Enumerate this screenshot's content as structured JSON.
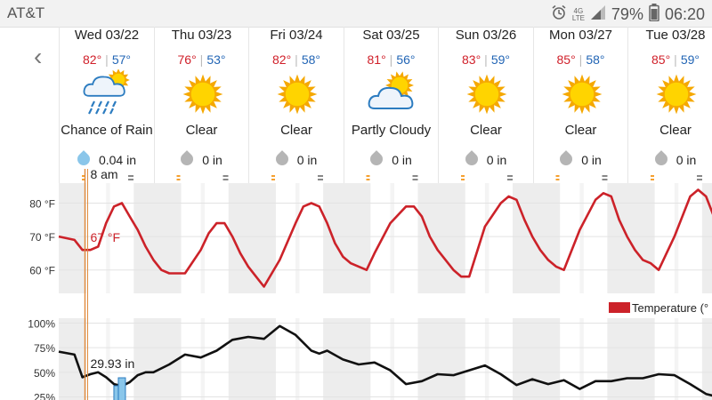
{
  "status": {
    "carrier": "AT&T",
    "network": "4G LTE",
    "battery": "79%",
    "time": "06:20"
  },
  "nav": {
    "back_label": "‹"
  },
  "days": [
    {
      "date": "Wed 03/22",
      "high": "82°",
      "low": "57°",
      "condition": "Chance of Rain",
      "icon": "rain-icon",
      "precip": "0.04 in"
    },
    {
      "date": "Thu 03/23",
      "high": "76°",
      "low": "53°",
      "condition": "Clear",
      "icon": "sun-icon",
      "precip": "0 in"
    },
    {
      "date": "Fri 03/24",
      "high": "82°",
      "low": "58°",
      "condition": "Clear",
      "icon": "sun-icon",
      "precip": "0 in"
    },
    {
      "date": "Sat 03/25",
      "high": "81°",
      "low": "56°",
      "condition": "Partly Cloudy",
      "icon": "partly-cloudy-icon",
      "precip": "0 in"
    },
    {
      "date": "Sun 03/26",
      "high": "83°",
      "low": "59°",
      "condition": "Clear",
      "icon": "sun-icon",
      "precip": "0 in"
    },
    {
      "date": "Mon 03/27",
      "high": "85°",
      "low": "58°",
      "condition": "Clear",
      "icon": "sun-icon",
      "precip": "0 in"
    },
    {
      "date": "Tue 03/28",
      "high": "85°",
      "low": "59°",
      "condition": "Clear",
      "icon": "sun-icon",
      "precip": "0 in"
    }
  ],
  "cursor": {
    "time_label": "8 am",
    "temp_label": "67 °F",
    "pressure_label": "29.93 in"
  },
  "colors": {
    "temp_line": "#cc2229",
    "pressure_line": "#111111",
    "high": "#d0202a",
    "low": "#2265b5",
    "rain_drop": "#8ac6ea",
    "dry_drop": "#b5b5b5",
    "cursor": "#e08a3c"
  },
  "chart_data": [
    {
      "type": "line",
      "title": "",
      "legend": [
        "Temperature (°F)"
      ],
      "legend_label": "Temperature (°",
      "ylabel": "",
      "yticks": [
        "80 °F",
        "70 °F",
        "60 °F"
      ],
      "ylim": [
        53,
        86
      ],
      "x_unit": "hours from Wed 03/22 00:00",
      "series": [
        {
          "name": "Temperature",
          "x": [
            0,
            4,
            6,
            8,
            10,
            12,
            14,
            16,
            18,
            20,
            22,
            24,
            26,
            28,
            32,
            36,
            38,
            40,
            42,
            44,
            46,
            48,
            50,
            52,
            56,
            60,
            62,
            64,
            66,
            68,
            70,
            72,
            74,
            76,
            78,
            80,
            84,
            88,
            90,
            92,
            94,
            96,
            98,
            100,
            102,
            104,
            108,
            112,
            114,
            116,
            118,
            120,
            122,
            124,
            126,
            128,
            132,
            136,
            138,
            140,
            142,
            144,
            146,
            148,
            150,
            152,
            156,
            160,
            162,
            164,
            166,
            168
          ],
          "y": [
            70,
            69,
            66,
            66,
            67,
            74,
            79,
            80,
            76,
            72,
            67,
            63,
            60,
            59,
            59,
            66,
            71,
            74,
            74,
            70,
            65,
            61,
            58,
            55,
            63,
            74,
            79,
            80,
            79,
            74,
            68,
            64,
            62,
            61,
            60,
            65,
            74,
            79,
            79,
            76,
            70,
            66,
            63,
            60,
            58,
            58,
            73,
            80,
            82,
            81,
            75,
            70,
            66,
            63,
            61,
            60,
            72,
            81,
            83,
            82,
            75,
            70,
            66,
            63,
            62,
            60,
            70,
            82,
            84,
            82,
            76,
            70
          ]
        }
      ]
    },
    {
      "type": "line",
      "title": "",
      "ylabel": "",
      "yticks": [
        "100%",
        "75%",
        "50%",
        "25%"
      ],
      "ylim": [
        20,
        105
      ],
      "x_unit": "hours from Wed 03/22 00:00",
      "series": [
        {
          "name": "",
          "x": [
            0,
            4,
            6,
            8,
            10,
            12,
            14,
            16,
            18,
            20,
            22,
            24,
            28,
            32,
            36,
            40,
            44,
            48,
            52,
            56,
            60,
            64,
            66,
            68,
            72,
            76,
            80,
            84,
            88,
            92,
            96,
            100,
            104,
            108,
            112,
            116,
            120,
            124,
            128,
            132,
            136,
            140,
            144,
            148,
            152,
            156,
            160,
            164,
            168
          ],
          "y": [
            71,
            68,
            45,
            48,
            50,
            45,
            38,
            36,
            40,
            47,
            50,
            50,
            58,
            68,
            65,
            72,
            83,
            86,
            84,
            97,
            88,
            72,
            69,
            72,
            63,
            58,
            60,
            52,
            38,
            41,
            48,
            47,
            52,
            57,
            48,
            37,
            43,
            38,
            42,
            33,
            41,
            41,
            44,
            44,
            48,
            47,
            38,
            28,
            24
          ]
        }
      ],
      "precip_bar": {
        "x": 16,
        "value": 0.04
      }
    }
  ]
}
